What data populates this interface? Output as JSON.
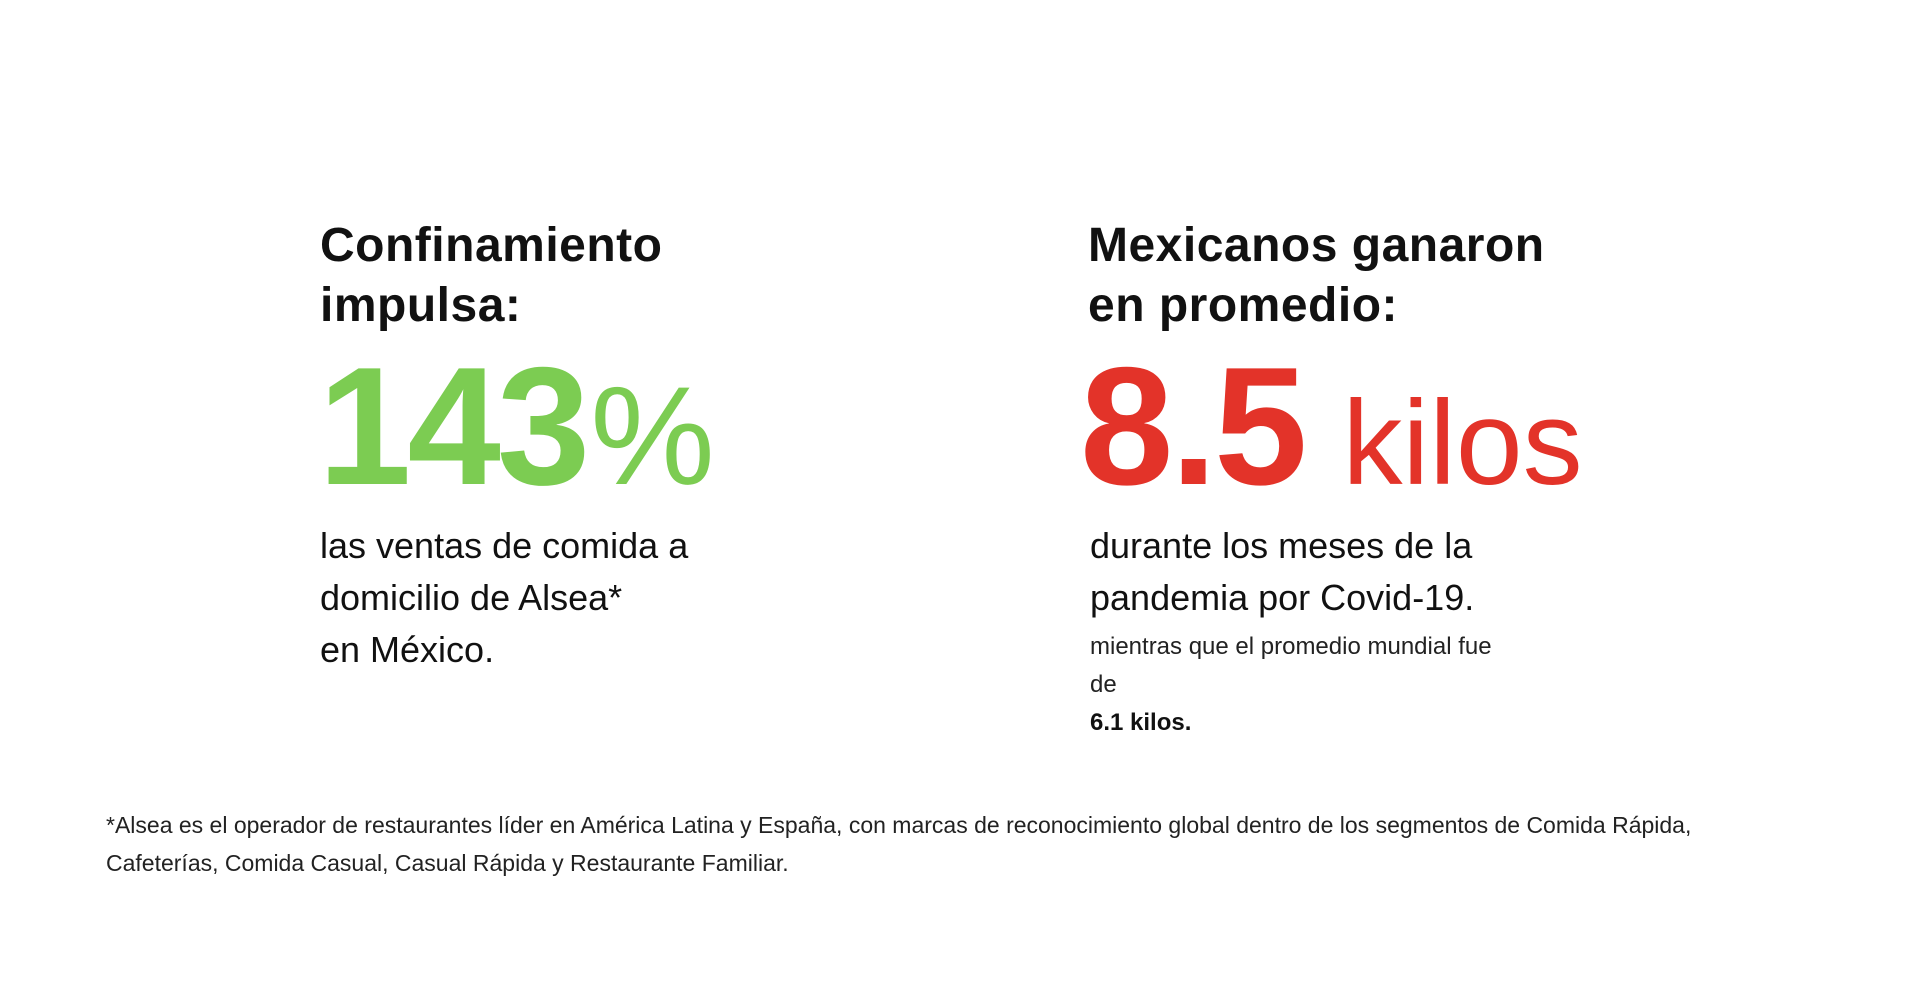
{
  "left": {
    "heading_line1": "Confinamiento",
    "heading_line2": "impulsa:",
    "big_number": "143",
    "big_unit": "%",
    "desc_line1": "las ventas de comida a",
    "desc_line2": "domicilio de Alsea*",
    "desc_line3": "en México."
  },
  "right": {
    "heading_line1": "Mexicanos ganaron",
    "heading_line2": "en promedio:",
    "big_number": "8.5",
    "big_unit": "kilos",
    "desc_line1": "durante los meses de la",
    "desc_line2": "pandemia por Covid-19.",
    "note_line1": "mientras que el promedio mundial fue",
    "note_line2_prefix": "de",
    "note_line2_bold": "6.1 kilos."
  },
  "footnote": {
    "line1": "*Alsea es el operador de restaurantes líder en América Latina y España, con marcas de reconocimiento global dentro de los segmentos de Comida Rápida,",
    "line2": "Cafeterías, Comida Casual, Casual Rápida y Restaurante Familiar."
  },
  "colors": {
    "green": "#7ccc52",
    "red": "#e33329",
    "text": "#111111"
  }
}
